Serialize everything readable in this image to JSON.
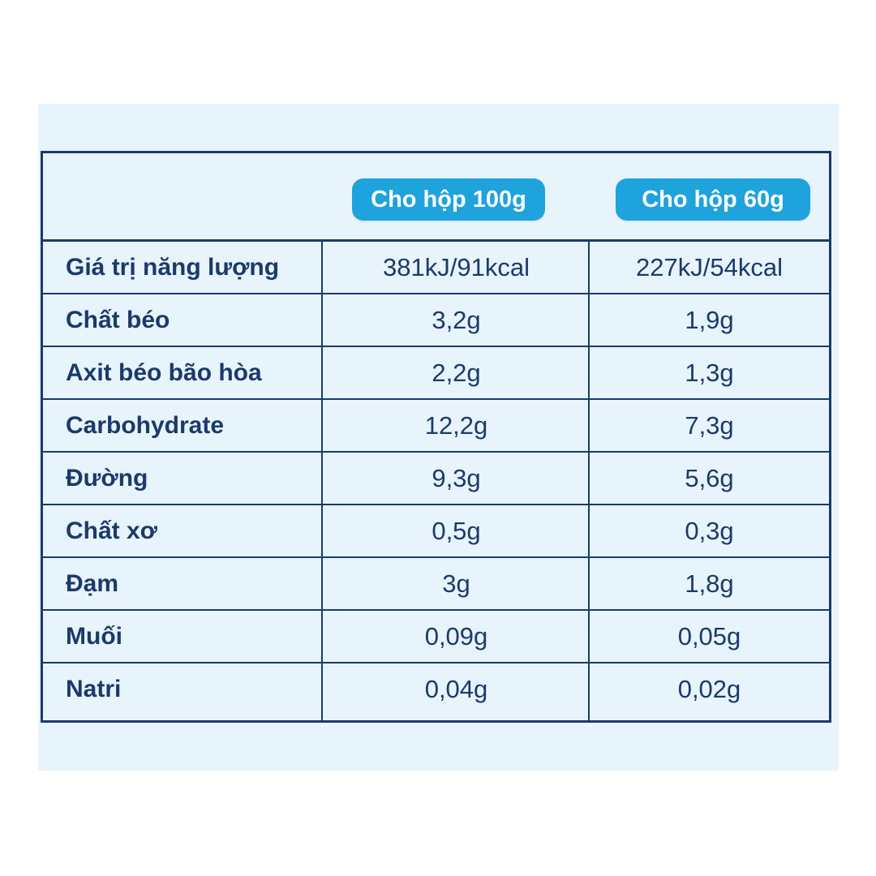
{
  "table": {
    "columns": [
      "Cho hộp 100g",
      "Cho hộp 60g"
    ],
    "rows": [
      {
        "label": "Giá trị năng lượng",
        "per_100g": "381kJ/91kcal",
        "per_60g": "227kJ/54kcal"
      },
      {
        "label": "Chất béo",
        "per_100g": "3,2g",
        "per_60g": "1,9g"
      },
      {
        "label": "Axit béo bão hòa",
        "per_100g": "2,2g",
        "per_60g": "1,3g"
      },
      {
        "label": "Carbohydrate",
        "per_100g": "12,2g",
        "per_60g": "7,3g"
      },
      {
        "label": "Đường",
        "per_100g": "9,3g",
        "per_60g": "5,6g"
      },
      {
        "label": "Chất xơ",
        "per_100g": "0,5g",
        "per_60g": "0,3g"
      },
      {
        "label": "Đạm",
        "per_100g": "3g",
        "per_60g": "1,8g"
      },
      {
        "label": "Muối",
        "per_100g": "0,09g",
        "per_60g": "0,05g"
      },
      {
        "label": "Natri",
        "per_100g": "0,04g",
        "per_60g": "0,02g"
      }
    ]
  },
  "colors": {
    "pill": "#1ea3dd",
    "text": "#1b3a6b",
    "background": "#e8f4fb"
  }
}
